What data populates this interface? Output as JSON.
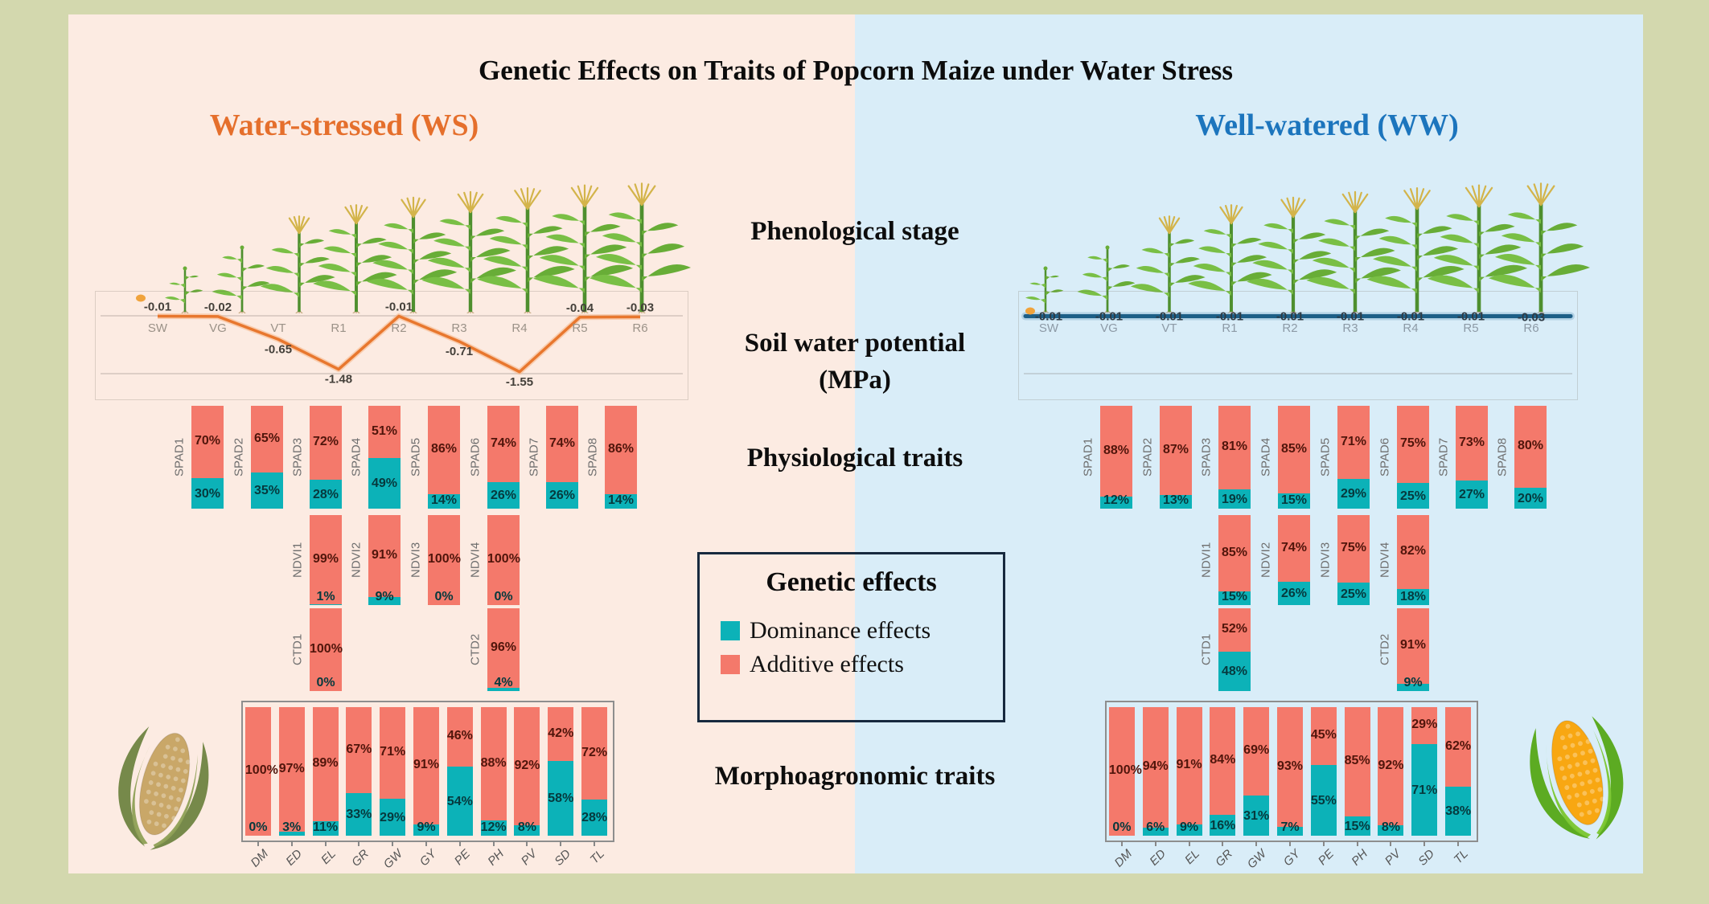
{
  "title": "Genetic Effects on Traits of Popcorn Maize under Water Stress",
  "panel_headers": {
    "ws": "Water-stressed (WS)",
    "ww": "Well-watered (WW)"
  },
  "center_labels": {
    "phenological": "Phenological stage",
    "soil": "Soil water potential (MPa)",
    "physiological": "Physiological traits",
    "morpho": "Morphoagronomic traits"
  },
  "legend": {
    "title": "Genetic effects",
    "items": [
      {
        "label": "Dominance effects",
        "color": "#0cb2b8"
      },
      {
        "label": "Additive effects",
        "color": "#f4796b"
      }
    ]
  },
  "colors": {
    "background_frame": "#d3d8ae",
    "ws_panel_bg": "#fcebe2",
    "ww_panel_bg": "#d9edf8",
    "additive": "#f4796b",
    "dominance": "#0cb2b8",
    "ws_accent": "#e56f2c",
    "ww_accent": "#1c75bd",
    "ws_line": "#e8772e",
    "ww_line": "#1d5f87"
  },
  "chart_data": [
    {
      "id": "ws_soil",
      "type": "line",
      "title": "Soil water potential (MPa) - Water-stressed",
      "x": [
        "SW",
        "VG",
        "VT",
        "R1",
        "R2",
        "R3",
        "R4",
        "R5",
        "R6"
      ],
      "y": [
        -0.01,
        -0.02,
        -0.65,
        -1.48,
        -0.01,
        -0.71,
        -1.55,
        -0.04,
        -0.03
      ],
      "ylim": [
        -1.6,
        0
      ],
      "line_color": "#e8772e",
      "grid": true
    },
    {
      "id": "ww_soil",
      "type": "line",
      "title": "Soil water potential (MPa) - Well-watered",
      "x": [
        "SW",
        "VG",
        "VT",
        "R1",
        "R2",
        "R3",
        "R4",
        "R5",
        "R6"
      ],
      "y": [
        -0.01,
        -0.01,
        -0.01,
        -0.01,
        -0.01,
        -0.01,
        -0.01,
        -0.01,
        -0.03
      ],
      "ylim": [
        -1.6,
        0
      ],
      "line_color": "#1d5f87",
      "grid": true
    },
    {
      "id": "ws_phys",
      "type": "bar",
      "stacked": true,
      "title": "Physiological traits - Water-stressed (% of genetic effect)",
      "traits": [
        {
          "name": "SPAD1",
          "row": 0,
          "col": 0,
          "additive": 70,
          "dominance": 30
        },
        {
          "name": "SPAD2",
          "row": 0,
          "col": 1,
          "additive": 65,
          "dominance": 35
        },
        {
          "name": "SPAD3",
          "row": 0,
          "col": 2,
          "additive": 72,
          "dominance": 28
        },
        {
          "name": "SPAD4",
          "row": 0,
          "col": 3,
          "additive": 51,
          "dominance": 49
        },
        {
          "name": "SPAD5",
          "row": 0,
          "col": 4,
          "additive": 86,
          "dominance": 14
        },
        {
          "name": "SPAD6",
          "row": 0,
          "col": 5,
          "additive": 74,
          "dominance": 26
        },
        {
          "name": "SPAD7",
          "row": 0,
          "col": 6,
          "additive": 74,
          "dominance": 26
        },
        {
          "name": "SPAD8",
          "row": 0,
          "col": 7,
          "additive": 86,
          "dominance": 14
        },
        {
          "name": "NDVI1",
          "row": 1,
          "col": 2,
          "additive": 99,
          "dominance": 1
        },
        {
          "name": "NDVI2",
          "row": 1,
          "col": 3,
          "additive": 91,
          "dominance": 9
        },
        {
          "name": "NDVI3",
          "row": 1,
          "col": 4,
          "additive": 100,
          "dominance": 0
        },
        {
          "name": "NDVI4",
          "row": 1,
          "col": 5,
          "additive": 100,
          "dominance": 0
        },
        {
          "name": "CTD1",
          "row": 2,
          "col": 2,
          "additive": 100,
          "dominance": 0
        },
        {
          "name": "CTD2",
          "row": 2,
          "col": 5,
          "additive": 96,
          "dominance": 4
        }
      ]
    },
    {
      "id": "ww_phys",
      "type": "bar",
      "stacked": true,
      "title": "Physiological traits - Well-watered (% of genetic effect)",
      "traits": [
        {
          "name": "SPAD1",
          "row": 0,
          "col": 0,
          "additive": 88,
          "dominance": 12
        },
        {
          "name": "SPAD2",
          "row": 0,
          "col": 1,
          "additive": 87,
          "dominance": 13
        },
        {
          "name": "SPAD3",
          "row": 0,
          "col": 2,
          "additive": 81,
          "dominance": 19
        },
        {
          "name": "SPAD4",
          "row": 0,
          "col": 3,
          "additive": 85,
          "dominance": 15
        },
        {
          "name": "SPAD5",
          "row": 0,
          "col": 4,
          "additive": 71,
          "dominance": 29
        },
        {
          "name": "SPAD6",
          "row": 0,
          "col": 5,
          "additive": 75,
          "dominance": 25
        },
        {
          "name": "SPAD7",
          "row": 0,
          "col": 6,
          "additive": 73,
          "dominance": 27
        },
        {
          "name": "SPAD8",
          "row": 0,
          "col": 7,
          "additive": 80,
          "dominance": 20
        },
        {
          "name": "NDVI1",
          "row": 1,
          "col": 2,
          "additive": 85,
          "dominance": 15
        },
        {
          "name": "NDVI2",
          "row": 1,
          "col": 3,
          "additive": 74,
          "dominance": 26
        },
        {
          "name": "NDVI3",
          "row": 1,
          "col": 4,
          "additive": 75,
          "dominance": 25
        },
        {
          "name": "NDVI4",
          "row": 1,
          "col": 5,
          "additive": 82,
          "dominance": 18
        },
        {
          "name": "CTD1",
          "row": 2,
          "col": 2,
          "additive": 52,
          "dominance": 48
        },
        {
          "name": "CTD2",
          "row": 2,
          "col": 5,
          "additive": 91,
          "dominance": 9
        }
      ]
    },
    {
      "id": "ws_morpho",
      "type": "bar",
      "stacked": true,
      "title": "Morphoagronomic traits - Water-stressed (% of genetic effect)",
      "categories": [
        "DM",
        "ED",
        "EL",
        "GR",
        "GW",
        "GY",
        "PE",
        "PH",
        "PV",
        "SD",
        "TL"
      ],
      "series": [
        {
          "name": "Additive effects",
          "values": [
            100,
            97,
            89,
            67,
            71,
            91,
            46,
            88,
            92,
            42,
            72
          ]
        },
        {
          "name": "Dominance effects",
          "values": [
            0,
            3,
            11,
            33,
            29,
            9,
            54,
            12,
            8,
            58,
            28
          ]
        }
      ]
    },
    {
      "id": "ww_morpho",
      "type": "bar",
      "stacked": true,
      "title": "Morphoagronomic traits - Well-watered (% of genetic effect)",
      "categories": [
        "DM",
        "ED",
        "EL",
        "GR",
        "GW",
        "GY",
        "PE",
        "PH",
        "PV",
        "SD",
        "TL"
      ],
      "series": [
        {
          "name": "Additive effects",
          "values": [
            100,
            94,
            91,
            84,
            69,
            93,
            45,
            85,
            92,
            29,
            62
          ]
        },
        {
          "name": "Dominance effects",
          "values": [
            0,
            6,
            9,
            16,
            31,
            7,
            55,
            15,
            8,
            71,
            38
          ]
        }
      ]
    }
  ]
}
